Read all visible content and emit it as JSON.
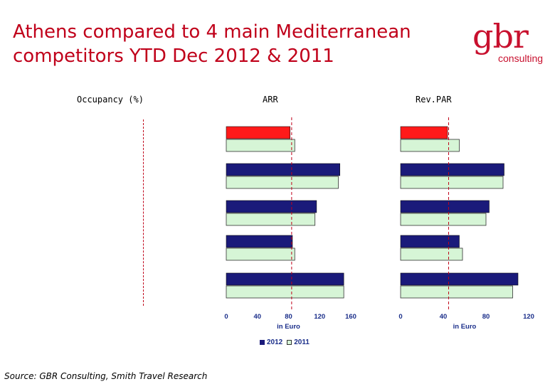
{
  "title": "Athens compared to 4 main Mediterranean competitors YTD Dec 2012 & 2011",
  "logo": {
    "main": "gbr",
    "sub": "consulting"
  },
  "source": "Source: GBR Consulting, Smith Travel Research",
  "legend": {
    "label_2012": "2012",
    "label_2011": "2011"
  },
  "colors": {
    "highlight": "#ff1a1a",
    "series_2012": "#1a1a7a",
    "series_2011": "#d6f5d6",
    "reference_line": "#c0001a"
  },
  "chart_data": [
    {
      "type": "bar",
      "title": "Occupancy (%)",
      "categories": [],
      "series": []
    },
    {
      "type": "bar",
      "orientation": "horizontal",
      "title": "ARR",
      "xlabel": "in Euro",
      "xlim": [
        0,
        160
      ],
      "xticks": [
        0,
        40,
        80,
        120,
        160
      ],
      "reference_value": 84,
      "groups": 5,
      "series": [
        {
          "name": "2012",
          "values": [
            82,
            146,
            116,
            85,
            151
          ]
        },
        {
          "name": "2011",
          "values": [
            88,
            144,
            114,
            88,
            151
          ]
        }
      ]
    },
    {
      "type": "bar",
      "orientation": "horizontal",
      "title": "Rev.PAR",
      "xlabel": "in Euro",
      "xlim": [
        0,
        120
      ],
      "xticks": [
        0,
        40,
        80,
        120
      ],
      "reference_value": 45,
      "groups": 5,
      "series": [
        {
          "name": "2012",
          "values": [
            44,
            97,
            83,
            55,
            110
          ]
        },
        {
          "name": "2011",
          "values": [
            55,
            96,
            80,
            58,
            105
          ]
        }
      ]
    }
  ]
}
